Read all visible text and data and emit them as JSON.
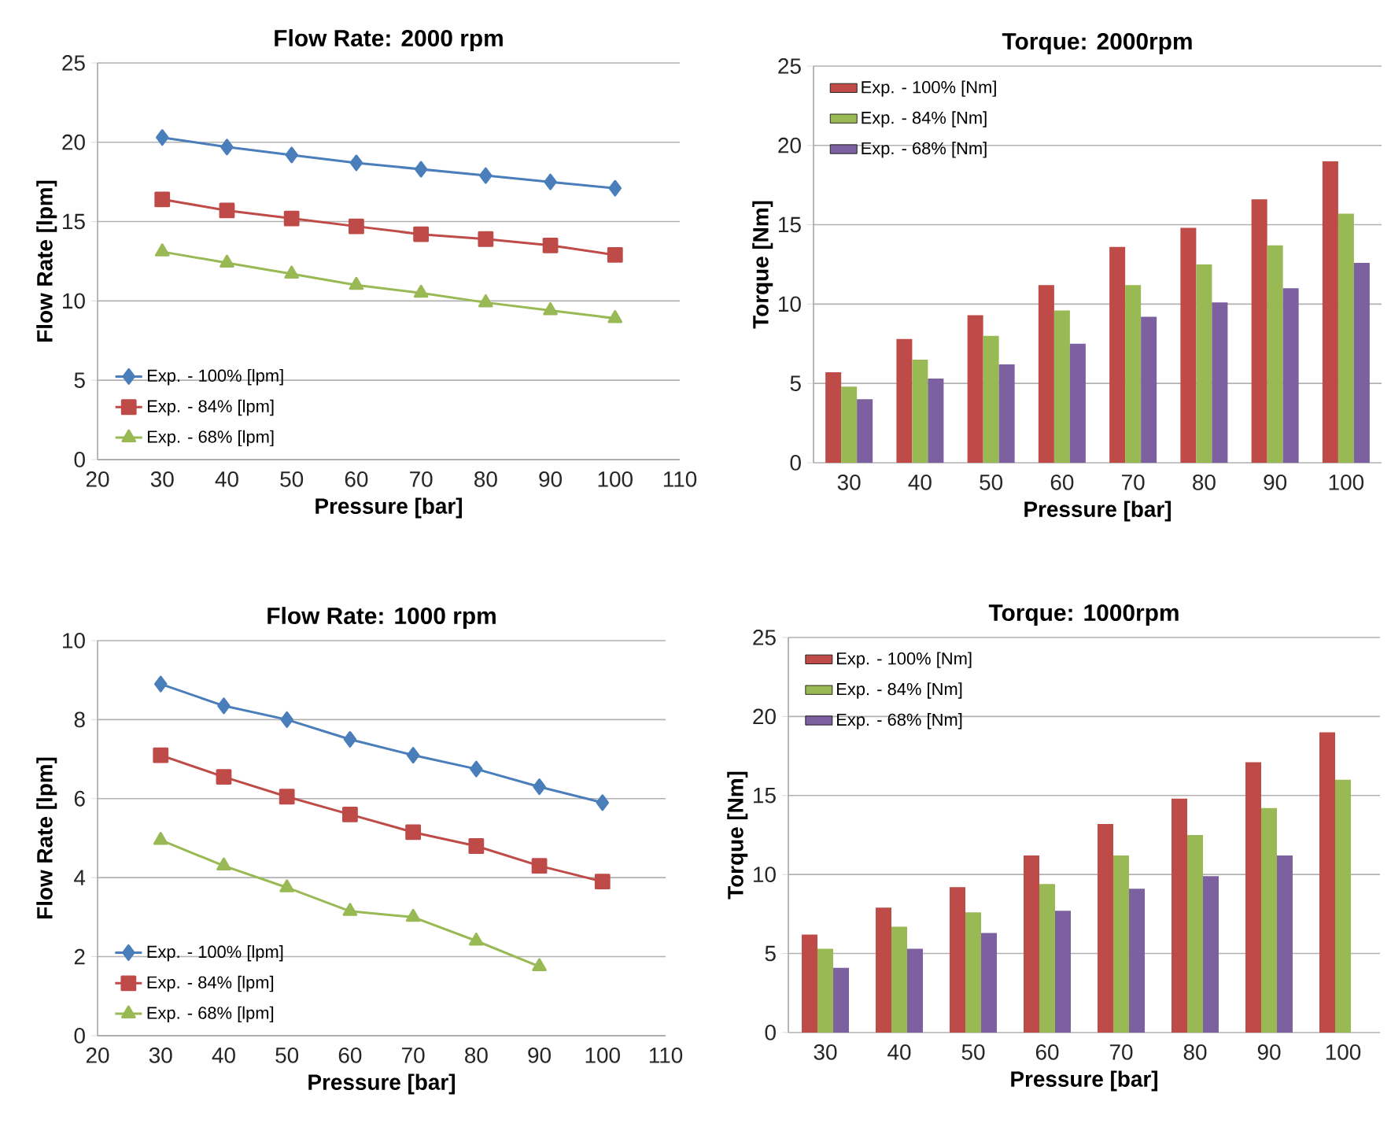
{
  "chart_data": [
    {
      "type": "line",
      "title": "Flow Rate: 2000 rpm",
      "xlabel": "Pressure [bar]",
      "ylabel": "Flow Rate [lpm]",
      "x": [
        30,
        40,
        50,
        60,
        70,
        80,
        90,
        100
      ],
      "xlim": [
        20,
        110
      ],
      "xticks": [
        20,
        30,
        40,
        50,
        60,
        70,
        80,
        90,
        100,
        110
      ],
      "ylim": [
        0,
        25
      ],
      "yticks": [
        0,
        5,
        10,
        15,
        20,
        25
      ],
      "grid": "y",
      "legend": "bottom left",
      "series": [
        {
          "name": "Exp. - 100% [lpm]",
          "color": "#4a7ebb",
          "marker": "diamond",
          "values": [
            20.3,
            19.7,
            19.2,
            18.7,
            18.3,
            17.9,
            17.5,
            17.1
          ]
        },
        {
          "name": "Exp. - 84% [lpm]",
          "color": "#be4b48",
          "marker": "square",
          "values": [
            16.4,
            15.7,
            15.2,
            14.7,
            14.2,
            13.9,
            13.5,
            12.9
          ]
        },
        {
          "name": "Exp. - 68% [lpm]",
          "color": "#98b954",
          "marker": "triangle",
          "values": [
            13.1,
            12.4,
            11.7,
            11.0,
            10.5,
            9.9,
            9.4,
            8.9
          ]
        }
      ]
    },
    {
      "type": "bar",
      "title": "Torque: 2000rpm",
      "xlabel": "Pressure [bar]",
      "ylabel": "Torque [Nm]",
      "categories": [
        "30",
        "40",
        "50",
        "60",
        "70",
        "80",
        "90",
        "100"
      ],
      "ylim": [
        0,
        25
      ],
      "yticks": [
        0,
        5,
        10,
        15,
        20,
        25
      ],
      "grid": "y",
      "legend": "top left",
      "series": [
        {
          "name": "Exp. - 100% [Nm]",
          "color": "#be4b48",
          "values": [
            5.7,
            7.8,
            9.3,
            11.2,
            13.6,
            14.8,
            16.6,
            19.0
          ]
        },
        {
          "name": "Exp. - 84% [Nm]",
          "color": "#98b954",
          "values": [
            4.8,
            6.5,
            8.0,
            9.6,
            11.2,
            12.5,
            13.7,
            15.7
          ]
        },
        {
          "name": "Exp. - 68% [Nm]",
          "color": "#7d60a0",
          "values": [
            4.0,
            5.3,
            6.2,
            7.5,
            9.2,
            10.1,
            11.0,
            12.6
          ]
        }
      ]
    },
    {
      "type": "line",
      "title": "Flow Rate: 1000 rpm",
      "xlabel": "Pressure [bar]",
      "ylabel": "Flow Rate [lpm]",
      "x": [
        30,
        40,
        50,
        60,
        70,
        80,
        90,
        100
      ],
      "xlim": [
        20,
        110
      ],
      "xticks": [
        20,
        30,
        40,
        50,
        60,
        70,
        80,
        90,
        100,
        110
      ],
      "ylim": [
        0,
        10
      ],
      "yticks": [
        0,
        2,
        4,
        6,
        8,
        10
      ],
      "grid": "y",
      "legend": "bottom left",
      "series": [
        {
          "name": "Exp. - 100% [lpm]",
          "color": "#4a7ebb",
          "marker": "diamond",
          "values": [
            8.9,
            8.35,
            8.0,
            7.5,
            7.1,
            6.75,
            6.3,
            5.9
          ]
        },
        {
          "name": "Exp. - 84% [lpm]",
          "color": "#be4b48",
          "marker": "square",
          "values": [
            7.1,
            6.55,
            6.05,
            5.6,
            5.15,
            4.8,
            4.3,
            3.9
          ]
        },
        {
          "name": "Exp. - 68% [lpm]",
          "color": "#98b954",
          "marker": "triangle",
          "values": [
            4.95,
            4.3,
            3.75,
            3.15,
            3.0,
            2.4,
            1.75,
            null
          ]
        }
      ]
    },
    {
      "type": "bar",
      "title": "Torque: 1000rpm",
      "xlabel": "Pressure [bar]",
      "ylabel": "Torque [Nm]",
      "categories": [
        "30",
        "40",
        "50",
        "60",
        "70",
        "80",
        "90",
        "100"
      ],
      "ylim": [
        0,
        25
      ],
      "yticks": [
        0,
        5,
        10,
        15,
        20,
        25
      ],
      "grid": "y",
      "legend": "top left",
      "series": [
        {
          "name": "Exp. - 100% [Nm]",
          "color": "#be4b48",
          "values": [
            6.2,
            7.9,
            9.2,
            11.2,
            13.2,
            14.8,
            17.1,
            19.0
          ]
        },
        {
          "name": "Exp. - 84% [Nm]",
          "color": "#98b954",
          "values": [
            5.3,
            6.7,
            7.6,
            9.4,
            11.2,
            12.5,
            14.2,
            16.0
          ]
        },
        {
          "name": "Exp. - 68% [Nm]",
          "color": "#7d60a0",
          "values": [
            4.1,
            5.3,
            6.3,
            7.7,
            9.1,
            9.9,
            11.2,
            null
          ]
        }
      ]
    }
  ]
}
